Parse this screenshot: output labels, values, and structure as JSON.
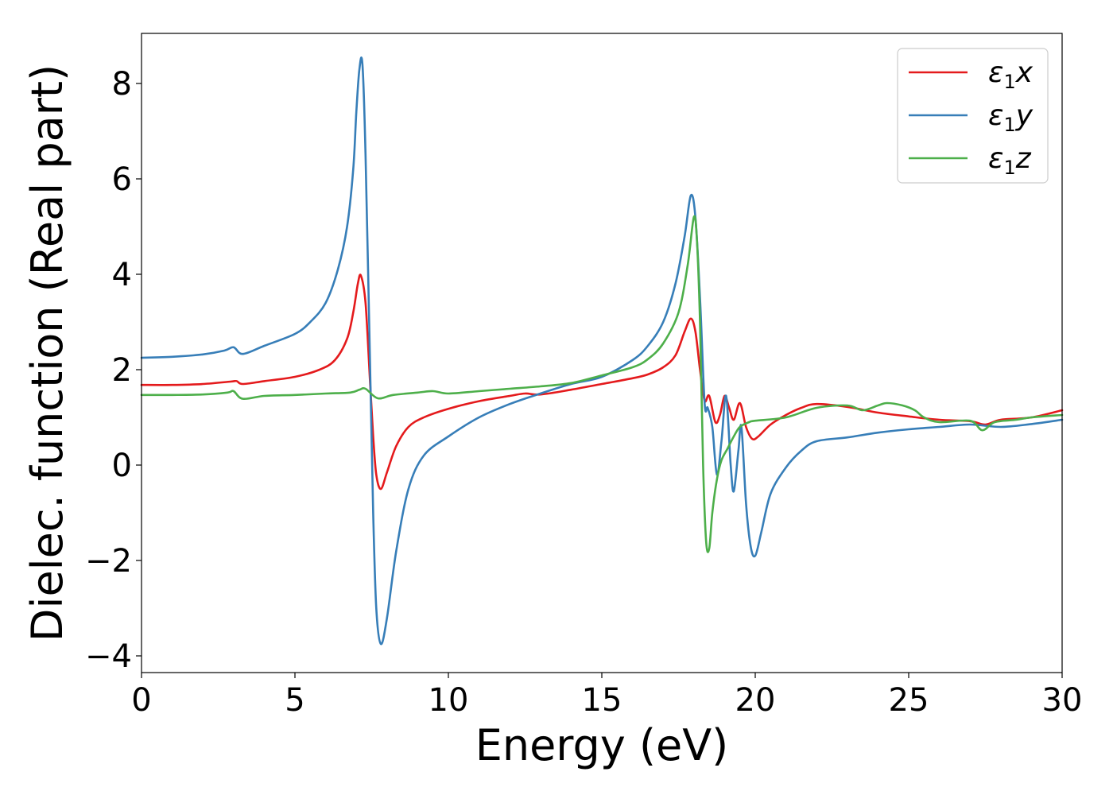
{
  "chart_data": {
    "type": "line",
    "xlabel": "Energy (eV)",
    "ylabel": "Dielec. function (Real part)",
    "xlim": [
      0,
      30
    ],
    "ylim": [
      -4.35,
      9.05
    ],
    "xticks": [
      0,
      5,
      10,
      15,
      20,
      25,
      30
    ],
    "xtick_labels": [
      "0",
      "5",
      "10",
      "15",
      "20",
      "25",
      "30"
    ],
    "yticks": [
      -4,
      -2,
      0,
      2,
      4,
      6,
      8
    ],
    "ytick_labels": [
      "−4",
      "−2",
      "0",
      "2",
      "4",
      "6",
      "8"
    ],
    "grid": false,
    "legend": {
      "placement": "top-right",
      "entries": [
        {
          "symbol": "ε",
          "sub": "1",
          "var": "x"
        },
        {
          "symbol": "ε",
          "sub": "1",
          "var": "y"
        },
        {
          "symbol": "ε",
          "sub": "1",
          "var": "z"
        }
      ]
    },
    "series": [
      {
        "color": "#e41a1c",
        "points": [
          [
            0,
            1.68
          ],
          [
            1,
            1.68
          ],
          [
            2,
            1.7
          ],
          [
            2.9,
            1.75
          ],
          [
            3.1,
            1.76
          ],
          [
            3.3,
            1.7
          ],
          [
            4,
            1.76
          ],
          [
            5,
            1.85
          ],
          [
            5.8,
            2.0
          ],
          [
            6.3,
            2.2
          ],
          [
            6.7,
            2.65
          ],
          [
            6.9,
            3.2
          ],
          [
            7.05,
            3.8
          ],
          [
            7.15,
            3.97
          ],
          [
            7.3,
            3.4
          ],
          [
            7.45,
            1.7
          ],
          [
            7.55,
            0.6
          ],
          [
            7.65,
            -0.2
          ],
          [
            7.8,
            -0.5
          ],
          [
            8.0,
            -0.15
          ],
          [
            8.3,
            0.4
          ],
          [
            8.7,
            0.8
          ],
          [
            9.2,
            1.0
          ],
          [
            10,
            1.18
          ],
          [
            11,
            1.34
          ],
          [
            12,
            1.45
          ],
          [
            12.5,
            1.5
          ],
          [
            13,
            1.48
          ],
          [
            14,
            1.58
          ],
          [
            15,
            1.7
          ],
          [
            16,
            1.82
          ],
          [
            16.5,
            1.9
          ],
          [
            17,
            2.05
          ],
          [
            17.4,
            2.3
          ],
          [
            17.7,
            2.8
          ],
          [
            17.9,
            3.07
          ],
          [
            18.05,
            2.8
          ],
          [
            18.2,
            2.0
          ],
          [
            18.35,
            1.35
          ],
          [
            18.5,
            1.45
          ],
          [
            18.7,
            0.9
          ],
          [
            18.85,
            1.05
          ],
          [
            19.0,
            1.45
          ],
          [
            19.15,
            1.2
          ],
          [
            19.3,
            0.95
          ],
          [
            19.5,
            1.3
          ],
          [
            19.7,
            0.8
          ],
          [
            19.9,
            0.55
          ],
          [
            20.1,
            0.6
          ],
          [
            20.5,
            0.85
          ],
          [
            21,
            1.05
          ],
          [
            21.5,
            1.2
          ],
          [
            22,
            1.28
          ],
          [
            23,
            1.22
          ],
          [
            24,
            1.1
          ],
          [
            25,
            1.02
          ],
          [
            26,
            0.95
          ],
          [
            27,
            0.92
          ],
          [
            27.5,
            0.85
          ],
          [
            28,
            0.95
          ],
          [
            29,
            1.0
          ],
          [
            30,
            1.15
          ]
        ]
      },
      {
        "color": "#377eb8",
        "points": [
          [
            0,
            2.25
          ],
          [
            1,
            2.27
          ],
          [
            2,
            2.32
          ],
          [
            2.7,
            2.4
          ],
          [
            3.0,
            2.47
          ],
          [
            3.3,
            2.33
          ],
          [
            4,
            2.5
          ],
          [
            5,
            2.75
          ],
          [
            5.5,
            3.0
          ],
          [
            6.0,
            3.4
          ],
          [
            6.4,
            4.1
          ],
          [
            6.7,
            5.0
          ],
          [
            6.9,
            6.2
          ],
          [
            7.0,
            7.4
          ],
          [
            7.1,
            8.3
          ],
          [
            7.2,
            8.4
          ],
          [
            7.3,
            6.5
          ],
          [
            7.45,
            2.0
          ],
          [
            7.55,
            -1.0
          ],
          [
            7.65,
            -3.0
          ],
          [
            7.8,
            -3.75
          ],
          [
            8.0,
            -3.2
          ],
          [
            8.3,
            -1.8
          ],
          [
            8.7,
            -0.5
          ],
          [
            9.2,
            0.2
          ],
          [
            10,
            0.6
          ],
          [
            11,
            1.0
          ],
          [
            12,
            1.28
          ],
          [
            13,
            1.5
          ],
          [
            14,
            1.7
          ],
          [
            15,
            1.85
          ],
          [
            16,
            2.2
          ],
          [
            16.5,
            2.5
          ],
          [
            17,
            3.0
          ],
          [
            17.4,
            3.8
          ],
          [
            17.7,
            4.8
          ],
          [
            17.9,
            5.65
          ],
          [
            18.05,
            5.2
          ],
          [
            18.2,
            3.5
          ],
          [
            18.35,
            1.3
          ],
          [
            18.45,
            1.2
          ],
          [
            18.6,
            0.8
          ],
          [
            18.75,
            -0.2
          ],
          [
            18.9,
            0.5
          ],
          [
            19.05,
            1.45
          ],
          [
            19.2,
            0.0
          ],
          [
            19.3,
            -0.55
          ],
          [
            19.45,
            0.3
          ],
          [
            19.55,
            0.8
          ],
          [
            19.7,
            -0.8
          ],
          [
            19.85,
            -1.7
          ],
          [
            20.0,
            -1.9
          ],
          [
            20.2,
            -1.4
          ],
          [
            20.5,
            -0.6
          ],
          [
            21,
            -0.05
          ],
          [
            21.5,
            0.3
          ],
          [
            22,
            0.5
          ],
          [
            23,
            0.58
          ],
          [
            24,
            0.68
          ],
          [
            25,
            0.75
          ],
          [
            26,
            0.8
          ],
          [
            27,
            0.85
          ],
          [
            28,
            0.8
          ],
          [
            29,
            0.86
          ],
          [
            30,
            0.95
          ]
        ]
      },
      {
        "color": "#4daf4a",
        "points": [
          [
            0,
            1.47
          ],
          [
            1,
            1.47
          ],
          [
            2,
            1.48
          ],
          [
            2.8,
            1.52
          ],
          [
            3.0,
            1.55
          ],
          [
            3.3,
            1.39
          ],
          [
            4,
            1.45
          ],
          [
            5,
            1.47
          ],
          [
            6,
            1.5
          ],
          [
            6.8,
            1.52
          ],
          [
            7.1,
            1.58
          ],
          [
            7.3,
            1.6
          ],
          [
            7.7,
            1.4
          ],
          [
            8.2,
            1.47
          ],
          [
            9,
            1.52
          ],
          [
            9.5,
            1.55
          ],
          [
            10,
            1.5
          ],
          [
            11,
            1.55
          ],
          [
            12,
            1.6
          ],
          [
            13,
            1.65
          ],
          [
            14,
            1.72
          ],
          [
            15,
            1.88
          ],
          [
            16,
            2.05
          ],
          [
            16.5,
            2.22
          ],
          [
            17,
            2.55
          ],
          [
            17.5,
            3.2
          ],
          [
            17.8,
            4.2
          ],
          [
            18.0,
            5.2
          ],
          [
            18.1,
            4.7
          ],
          [
            18.2,
            3.0
          ],
          [
            18.3,
            0.0
          ],
          [
            18.4,
            -1.6
          ],
          [
            18.5,
            -1.75
          ],
          [
            18.6,
            -1.0
          ],
          [
            18.75,
            -0.3
          ],
          [
            18.9,
            0.1
          ],
          [
            19.1,
            0.35
          ],
          [
            19.3,
            0.6
          ],
          [
            19.5,
            0.8
          ],
          [
            19.8,
            0.9
          ],
          [
            20,
            0.93
          ],
          [
            21,
            1.0
          ],
          [
            22,
            1.2
          ],
          [
            23,
            1.25
          ],
          [
            23.5,
            1.15
          ],
          [
            24,
            1.25
          ],
          [
            24.3,
            1.3
          ],
          [
            24.8,
            1.25
          ],
          [
            25.2,
            1.15
          ],
          [
            25.5,
            1.0
          ],
          [
            26,
            0.9
          ],
          [
            27,
            0.93
          ],
          [
            27.4,
            0.73
          ],
          [
            27.8,
            0.9
          ],
          [
            28.5,
            0.95
          ],
          [
            29,
            1.0
          ],
          [
            30,
            1.05
          ]
        ]
      }
    ]
  }
}
